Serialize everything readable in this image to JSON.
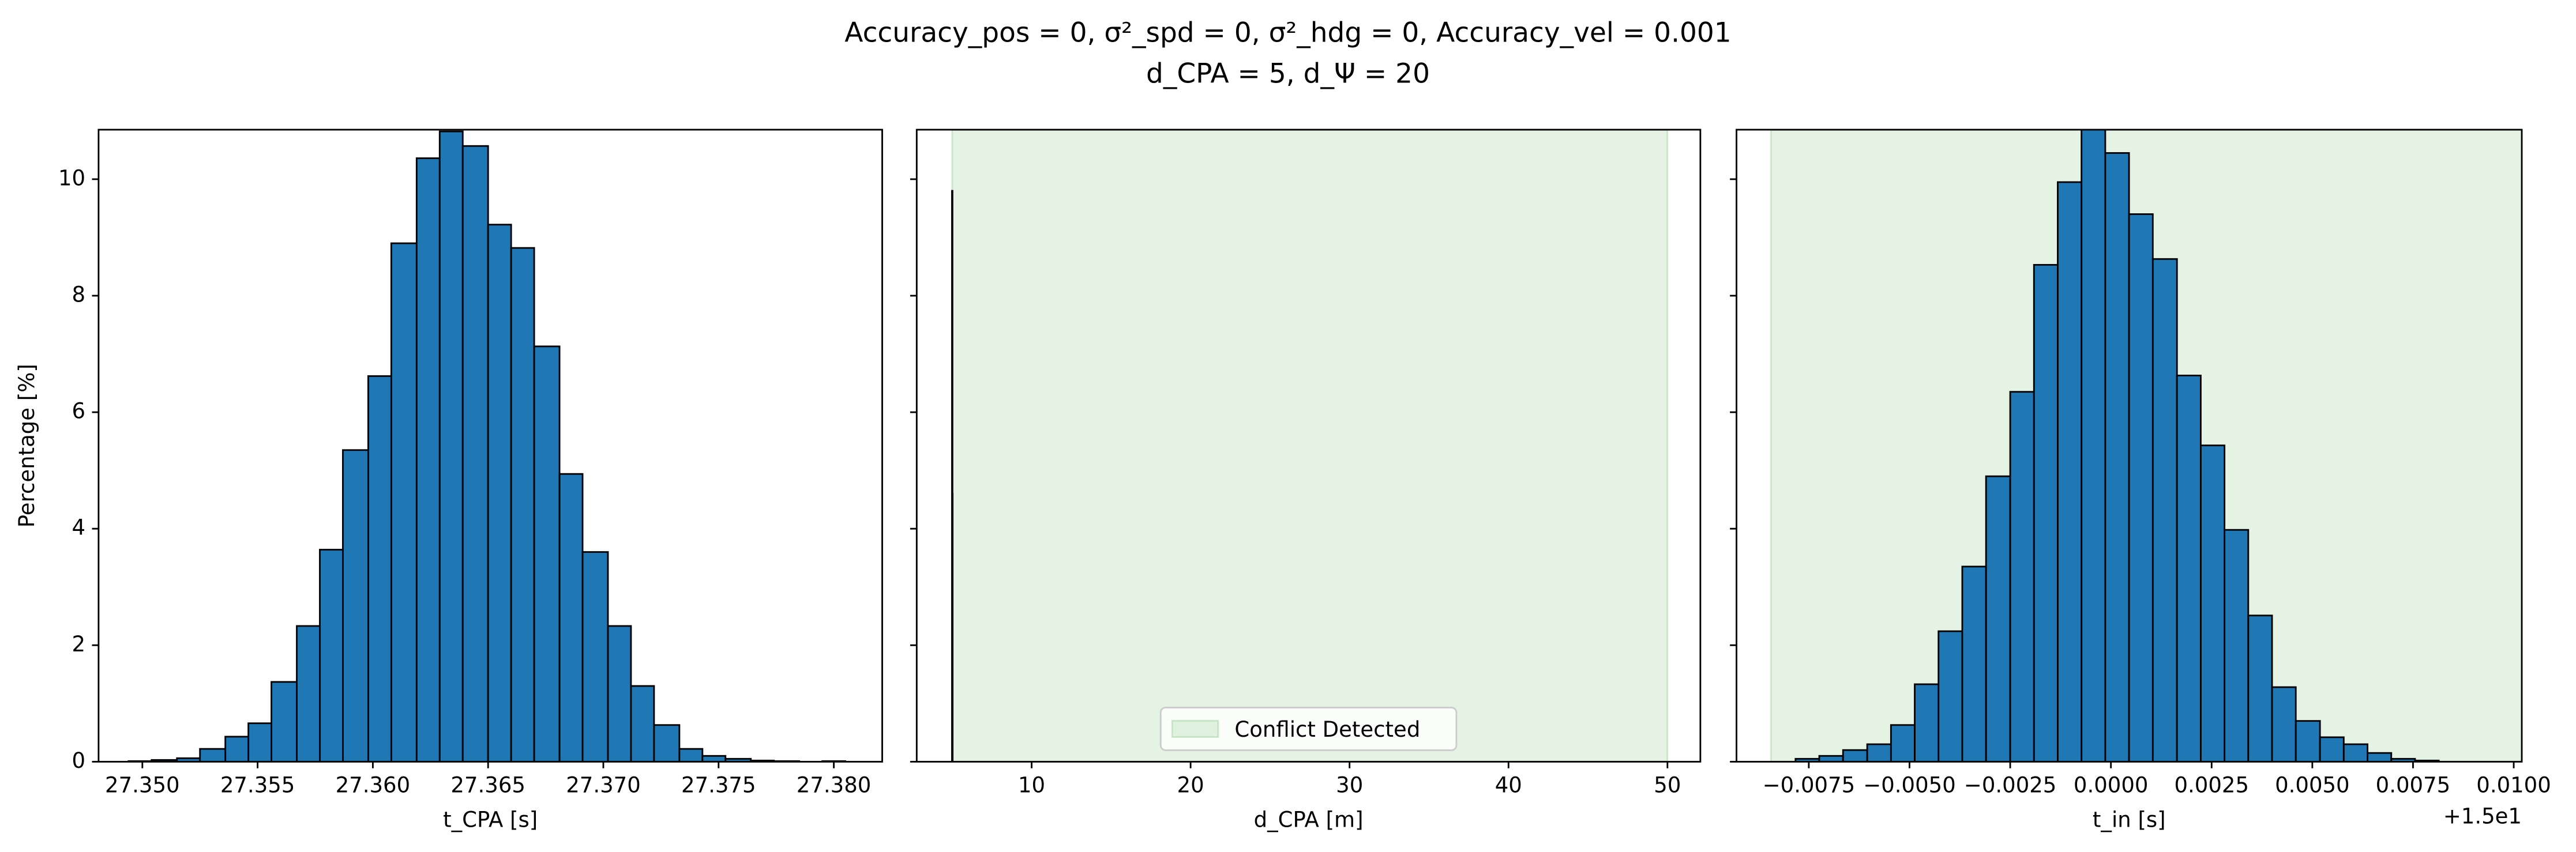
{
  "title": [
    "Accuracy_pos = 0, σ²_spd = 0, σ²_hdg = 0, Accuracy_vel = 0.001",
    "d_CPA = 5, d_Ψ = 20"
  ],
  "chart_data": [
    {
      "type": "histogram",
      "xlabel": "t_CPA [s]",
      "ylabel": "Percentage [%]",
      "color": "#1f77b4",
      "bins": [
        27.3494,
        27.3504,
        27.3515,
        27.3525,
        27.3536,
        27.3546,
        27.3556,
        27.3567,
        27.3577,
        27.3587,
        27.3598,
        27.3608,
        27.3619,
        27.3629,
        27.3639,
        27.365,
        27.366,
        27.367,
        27.3681,
        27.3691,
        27.3702,
        27.3712,
        27.3722,
        27.3733,
        27.3743,
        27.3753,
        27.3764,
        27.3774,
        27.3785,
        27.3795,
        27.3805
      ],
      "values": [
        0.01,
        0.03,
        0.06,
        0.22,
        0.43,
        0.66,
        1.37,
        2.33,
        3.64,
        5.35,
        6.62,
        8.9,
        10.36,
        10.82,
        10.57,
        9.22,
        8.82,
        7.13,
        4.94,
        3.6,
        2.33,
        1.3,
        0.63,
        0.22,
        0.1,
        0.05,
        0.02,
        0.01,
        0,
        0.01
      ],
      "xlim": [
        27.3481,
        27.3821
      ],
      "ylim": [
        0,
        10.85
      ],
      "xticks": [
        {
          "value": 27.35,
          "label": "27.350"
        },
        27.355,
        {
          "value": 27.36,
          "label": "27.360"
        },
        27.365,
        {
          "value": 27.37,
          "label": "27.370"
        },
        27.375,
        {
          "value": 27.38,
          "label": "27.380"
        }
      ],
      "yticks": [
        0,
        2,
        4,
        6,
        8,
        10
      ]
    },
    {
      "type": "histogram",
      "xlabel": "d_CPA [m]",
      "color": "#1f77b4",
      "bins": [
        4.99,
        5.0,
        5.01
      ],
      "values": [
        9.8,
        4.6
      ],
      "span": {
        "x": [
          5,
          50
        ],
        "color": "#2ca02c",
        "label": "Conflict Detected"
      },
      "legend": "lower center",
      "xlim": [
        2.77,
        52.07
      ],
      "ylim": [
        0,
        10.85
      ],
      "xticks": [
        10,
        20,
        30,
        40,
        50
      ],
      "yticks": [
        0,
        2,
        4,
        6,
        8,
        10
      ]
    },
    {
      "type": "histogram",
      "xlabel": "t_in [s]",
      "x_offset_label": "+1.5e1",
      "color": "#1f77b4",
      "bins": [
        -0.00783,
        -0.00724,
        -0.00665,
        -0.00605,
        -0.00546,
        -0.00487,
        -0.00428,
        -0.00369,
        -0.0031,
        -0.0025,
        -0.00191,
        -0.00132,
        -0.00073,
        -0.00014,
        0.00045,
        0.00104,
        0.00164,
        0.00223,
        0.00282,
        0.00341,
        0.004,
        0.00459,
        0.00519,
        0.00578,
        0.00637,
        0.00696,
        0.00755,
        0.00814
      ],
      "values": [
        0.05,
        0.1,
        0.2,
        0.3,
        0.63,
        1.33,
        2.24,
        3.35,
        4.9,
        6.35,
        8.53,
        9.95,
        10.9,
        10.45,
        9.4,
        8.63,
        6.63,
        5.43,
        3.98,
        2.51,
        1.28,
        0.7,
        0.42,
        0.3,
        0.15,
        0.05,
        0.02
      ],
      "span": {
        "x": [
          -0.00844,
          0.0102
        ],
        "color": "#2ca02c"
      },
      "xlim": [
        -0.0092948,
        0.0102
      ],
      "ylim": [
        0,
        10.85
      ],
      "xticks": [
        {
          "value": -0.0075,
          "label": "−0.0075"
        },
        {
          "value": -0.005,
          "label": "−0.0050"
        },
        {
          "value": -0.0025,
          "label": "−0.0025"
        },
        {
          "value": 0,
          "label": "0.0000"
        },
        0.0025,
        {
          "value": 0.005,
          "label": "0.0050"
        },
        0.0075,
        {
          "value": 0.01,
          "label": "0.0100"
        }
      ],
      "yticks": [
        0,
        2,
        4,
        6,
        8,
        10
      ]
    }
  ]
}
